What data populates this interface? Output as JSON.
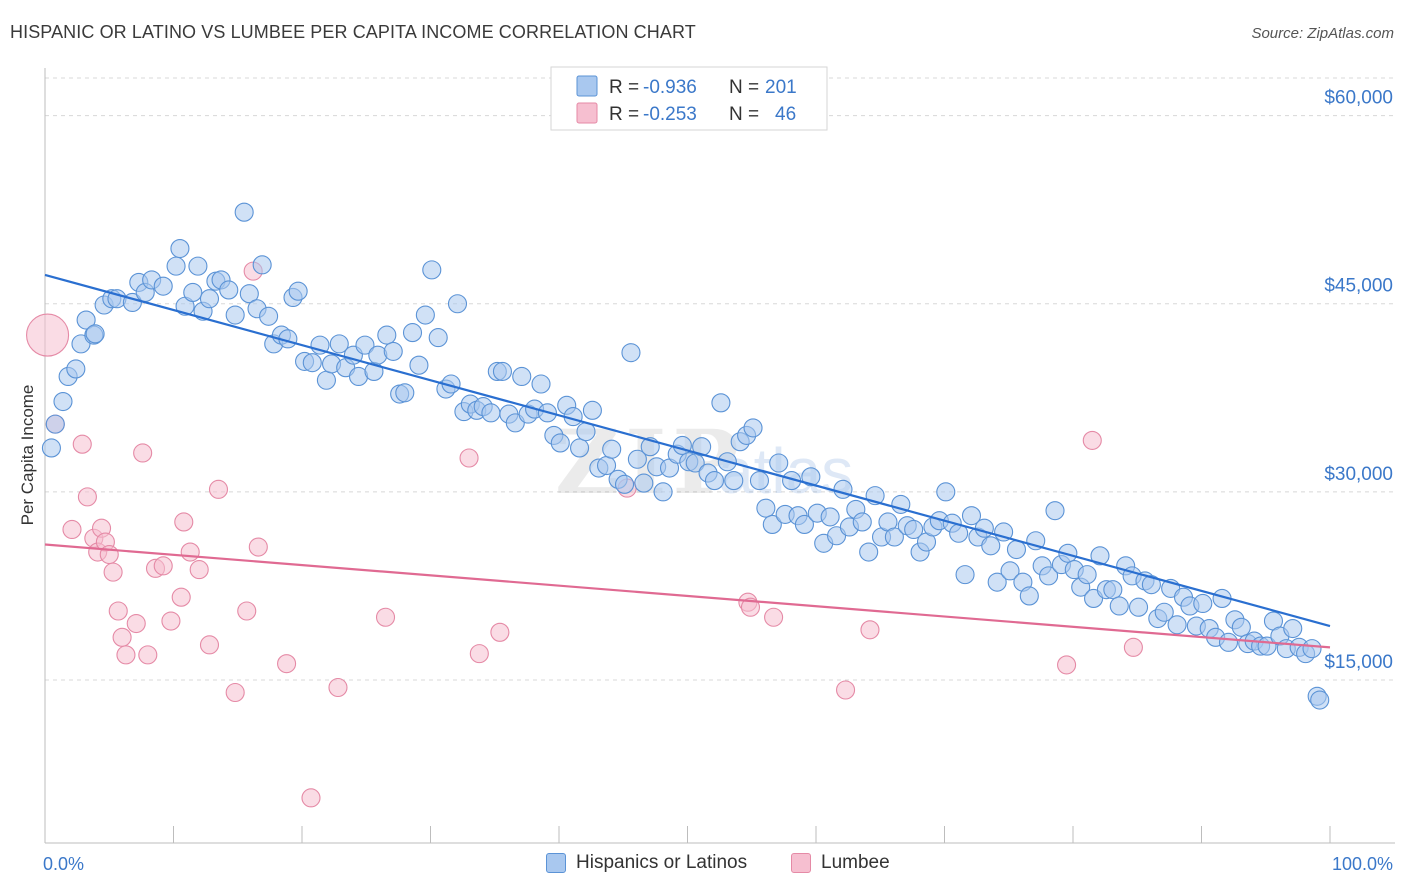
{
  "title": "HISPANIC OR LATINO VS LUMBEE PER CAPITA INCOME CORRELATION CHART",
  "source": "Source: ZipAtlas.com",
  "watermark": "ZIPatlas",
  "colors": {
    "blue_fill": "#a9c8ef",
    "blue_stroke": "#5b93d6",
    "blue_line": "#2a6fd0",
    "pink_fill": "#f6bfd0",
    "pink_stroke": "#e58aa6",
    "pink_line": "#e06a92",
    "tick_text": "#3b78c9",
    "grid": "#d8d8d8"
  },
  "legend_top": {
    "rows": [
      {
        "r_label": "R =",
        "r_value": "-0.936",
        "n_label": "N =",
        "n_value": "201"
      },
      {
        "r_label": "R =",
        "r_value": "-0.253",
        "n_label": "N =",
        "n_value": "46"
      }
    ]
  },
  "legend_bottom": [
    "Hispanics or Latinos",
    "Lumbee"
  ],
  "chart_data": {
    "type": "scatter",
    "title": "HISPANIC OR LATINO VS LUMBEE PER CAPITA INCOME CORRELATION CHART",
    "xlabel": "",
    "ylabel": "Per Capita Income",
    "xlim": [
      0,
      100
    ],
    "ylim": [
      2000,
      63000
    ],
    "x_tick_labels": [
      "0.0%",
      "100.0%"
    ],
    "y_ticks": [
      15000,
      30000,
      45000,
      60000
    ],
    "y_tick_labels": [
      "$15,000",
      "$30,000",
      "$45,000",
      "$60,000"
    ],
    "grid": true,
    "series": [
      {
        "name": "Hispanics or Latinos",
        "R": -0.936,
        "N": 201,
        "trend": {
          "x": [
            0,
            100
          ],
          "y": [
            47300,
            19300
          ]
        },
        "points": [
          [
            0.5,
            33500
          ],
          [
            0.8,
            35400
          ],
          [
            1.4,
            37200
          ],
          [
            1.8,
            39200
          ],
          [
            2.4,
            39800
          ],
          [
            2.8,
            41800
          ],
          [
            3.2,
            43700
          ],
          [
            3.8,
            42500
          ],
          [
            3.9,
            42600
          ],
          [
            4.6,
            44900
          ],
          [
            5.2,
            45400
          ],
          [
            5.6,
            45400
          ],
          [
            6.8,
            45100
          ],
          [
            7.3,
            46700
          ],
          [
            7.8,
            45900
          ],
          [
            8.3,
            46900
          ],
          [
            9.2,
            46400
          ],
          [
            10.2,
            48000
          ],
          [
            10.5,
            49400
          ],
          [
            10.9,
            44800
          ],
          [
            11.5,
            45900
          ],
          [
            11.9,
            48000
          ],
          [
            12.3,
            44400
          ],
          [
            12.8,
            45400
          ],
          [
            13.3,
            46800
          ],
          [
            13.7,
            46900
          ],
          [
            14.3,
            46100
          ],
          [
            14.8,
            44100
          ],
          [
            15.5,
            52300
          ],
          [
            15.9,
            45800
          ],
          [
            16.5,
            44600
          ],
          [
            16.9,
            48100
          ],
          [
            17.4,
            44000
          ],
          [
            17.8,
            41800
          ],
          [
            18.4,
            42500
          ],
          [
            18.9,
            42200
          ],
          [
            19.3,
            45500
          ],
          [
            19.7,
            46000
          ],
          [
            20.2,
            40400
          ],
          [
            20.8,
            40300
          ],
          [
            21.4,
            41700
          ],
          [
            21.9,
            38900
          ],
          [
            22.3,
            40200
          ],
          [
            22.9,
            41800
          ],
          [
            23.4,
            39900
          ],
          [
            24.0,
            40900
          ],
          [
            24.4,
            39200
          ],
          [
            24.9,
            41700
          ],
          [
            25.6,
            39600
          ],
          [
            25.9,
            40900
          ],
          [
            26.6,
            42500
          ],
          [
            27.1,
            41200
          ],
          [
            27.6,
            37800
          ],
          [
            28.0,
            37900
          ],
          [
            28.6,
            42700
          ],
          [
            29.1,
            40100
          ],
          [
            29.6,
            44100
          ],
          [
            30.1,
            47700
          ],
          [
            30.6,
            42300
          ],
          [
            31.2,
            38200
          ],
          [
            31.6,
            38600
          ],
          [
            32.1,
            45000
          ],
          [
            32.6,
            36400
          ],
          [
            33.1,
            37000
          ],
          [
            33.6,
            36500
          ],
          [
            34.1,
            36800
          ],
          [
            34.7,
            36300
          ],
          [
            35.2,
            39600
          ],
          [
            35.6,
            39600
          ],
          [
            36.1,
            36200
          ],
          [
            36.6,
            35500
          ],
          [
            37.1,
            39200
          ],
          [
            37.6,
            36200
          ],
          [
            38.1,
            36600
          ],
          [
            38.6,
            38600
          ],
          [
            39.1,
            36300
          ],
          [
            39.6,
            34500
          ],
          [
            40.1,
            33900
          ],
          [
            40.6,
            36900
          ],
          [
            41.1,
            36000
          ],
          [
            41.6,
            33500
          ],
          [
            42.1,
            34800
          ],
          [
            42.6,
            36500
          ],
          [
            43.1,
            31900
          ],
          [
            43.7,
            32100
          ],
          [
            44.1,
            33400
          ],
          [
            44.6,
            31000
          ],
          [
            45.1,
            30600
          ],
          [
            45.6,
            41100
          ],
          [
            46.1,
            32600
          ],
          [
            46.6,
            30700
          ],
          [
            47.1,
            33600
          ],
          [
            47.6,
            32000
          ],
          [
            48.1,
            30000
          ],
          [
            48.6,
            31900
          ],
          [
            49.2,
            33000
          ],
          [
            49.6,
            33700
          ],
          [
            50.1,
            32400
          ],
          [
            50.6,
            32300
          ],
          [
            51.1,
            33600
          ],
          [
            51.6,
            31500
          ],
          [
            52.1,
            30900
          ],
          [
            52.6,
            37100
          ],
          [
            53.1,
            32400
          ],
          [
            53.6,
            30900
          ],
          [
            54.1,
            34000
          ],
          [
            54.6,
            34500
          ],
          [
            55.1,
            35100
          ],
          [
            55.6,
            30900
          ],
          [
            56.1,
            28700
          ],
          [
            56.6,
            27400
          ],
          [
            57.1,
            32300
          ],
          [
            57.6,
            28200
          ],
          [
            58.1,
            30900
          ],
          [
            58.6,
            28100
          ],
          [
            59.1,
            27400
          ],
          [
            59.6,
            31200
          ],
          [
            60.1,
            28300
          ],
          [
            60.6,
            25900
          ],
          [
            61.1,
            28000
          ],
          [
            61.6,
            26500
          ],
          [
            62.1,
            30200
          ],
          [
            62.6,
            27200
          ],
          [
            63.1,
            28600
          ],
          [
            63.6,
            27600
          ],
          [
            64.1,
            25200
          ],
          [
            64.6,
            29700
          ],
          [
            65.1,
            26400
          ],
          [
            65.6,
            27600
          ],
          [
            66.1,
            26400
          ],
          [
            66.6,
            29000
          ],
          [
            67.1,
            27300
          ],
          [
            67.6,
            27000
          ],
          [
            68.1,
            25200
          ],
          [
            68.6,
            26000
          ],
          [
            69.1,
            27200
          ],
          [
            69.6,
            27700
          ],
          [
            70.1,
            30000
          ],
          [
            70.6,
            27500
          ],
          [
            71.1,
            26700
          ],
          [
            71.6,
            23400
          ],
          [
            72.1,
            28100
          ],
          [
            72.6,
            26400
          ],
          [
            73.1,
            27100
          ],
          [
            73.6,
            25700
          ],
          [
            74.1,
            22800
          ],
          [
            74.6,
            26800
          ],
          [
            75.1,
            23700
          ],
          [
            75.6,
            25400
          ],
          [
            76.1,
            22800
          ],
          [
            76.6,
            21700
          ],
          [
            77.1,
            26100
          ],
          [
            77.6,
            24100
          ],
          [
            78.1,
            23300
          ],
          [
            78.6,
            28500
          ],
          [
            79.1,
            24200
          ],
          [
            79.6,
            25100
          ],
          [
            80.1,
            23800
          ],
          [
            80.6,
            22400
          ],
          [
            81.1,
            23400
          ],
          [
            81.6,
            21500
          ],
          [
            82.1,
            24900
          ],
          [
            82.6,
            22200
          ],
          [
            83.1,
            22200
          ],
          [
            83.6,
            20900
          ],
          [
            84.1,
            24100
          ],
          [
            84.6,
            23300
          ],
          [
            85.1,
            20800
          ],
          [
            85.6,
            22900
          ],
          [
            86.1,
            22600
          ],
          [
            86.6,
            19900
          ],
          [
            87.1,
            20400
          ],
          [
            87.6,
            22300
          ],
          [
            88.1,
            19400
          ],
          [
            88.6,
            21600
          ],
          [
            89.1,
            20900
          ],
          [
            89.6,
            19300
          ],
          [
            90.1,
            21100
          ],
          [
            90.6,
            19100
          ],
          [
            91.1,
            18400
          ],
          [
            91.6,
            21500
          ],
          [
            92.1,
            18000
          ],
          [
            92.6,
            19800
          ],
          [
            93.1,
            19200
          ],
          [
            93.6,
            17900
          ],
          [
            94.1,
            18100
          ],
          [
            94.6,
            17700
          ],
          [
            95.1,
            17700
          ],
          [
            95.6,
            19700
          ],
          [
            96.1,
            18500
          ],
          [
            96.6,
            17500
          ],
          [
            97.1,
            19100
          ],
          [
            97.6,
            17600
          ],
          [
            98.1,
            17100
          ],
          [
            98.6,
            17500
          ],
          [
            99.0,
            13700
          ],
          [
            99.2,
            13400
          ]
        ]
      },
      {
        "name": "Lumbee",
        "R": -0.253,
        "N": 46,
        "trend": {
          "x": [
            0,
            100
          ],
          "y": [
            25800,
            17600
          ]
        },
        "points": [
          [
            0.2,
            42500
          ],
          [
            0.8,
            35400
          ],
          [
            2.1,
            27000
          ],
          [
            2.9,
            33800
          ],
          [
            3.3,
            29600
          ],
          [
            3.8,
            26300
          ],
          [
            4.1,
            25200
          ],
          [
            4.4,
            27100
          ],
          [
            4.7,
            26000
          ],
          [
            5.0,
            25000
          ],
          [
            5.3,
            23600
          ],
          [
            5.7,
            20500
          ],
          [
            6.0,
            18400
          ],
          [
            6.3,
            17000
          ],
          [
            7.1,
            19500
          ],
          [
            7.6,
            33100
          ],
          [
            8.0,
            17000
          ],
          [
            8.6,
            23900
          ],
          [
            9.2,
            24100
          ],
          [
            9.8,
            19700
          ],
          [
            10.6,
            21600
          ],
          [
            10.8,
            27600
          ],
          [
            11.3,
            25200
          ],
          [
            12.0,
            23800
          ],
          [
            12.8,
            17800
          ],
          [
            13.5,
            30200
          ],
          [
            14.8,
            14000
          ],
          [
            15.7,
            20500
          ],
          [
            16.2,
            47600
          ],
          [
            16.6,
            25600
          ],
          [
            18.8,
            16300
          ],
          [
            20.7,
            5600
          ],
          [
            22.8,
            14400
          ],
          [
            26.5,
            20000
          ],
          [
            33.0,
            32700
          ],
          [
            33.8,
            17100
          ],
          [
            35.4,
            18800
          ],
          [
            45.3,
            30300
          ],
          [
            54.7,
            21200
          ],
          [
            54.9,
            20800
          ],
          [
            56.7,
            20000
          ],
          [
            62.3,
            14200
          ],
          [
            64.2,
            19000
          ],
          [
            79.5,
            16200
          ],
          [
            81.5,
            34100
          ],
          [
            84.7,
            17600
          ]
        ]
      }
    ]
  }
}
